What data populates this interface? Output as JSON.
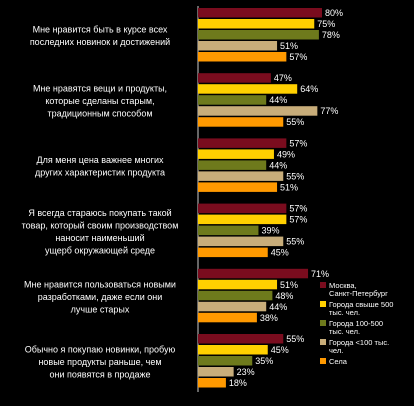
{
  "chart_data": {
    "type": "bar",
    "orientation": "horizontal",
    "xlim": [
      0,
      100
    ],
    "grid": false,
    "legend_position": "bottom-right",
    "categories": [
      [
        "Мне нравится быть в курсе всех",
        "последних новинок и достижений"
      ],
      [
        "Мне нравятся вещи и продукты,",
        "которые сделаны старым,",
        "традиционным способом"
      ],
      [
        "Для меня цена важнее многих",
        "других характеристик продукта"
      ],
      [
        "Я всегда стараюсь покупать такой",
        "товар, который своим производством",
        "наносит наименьший",
        "ущерб окружающей среде"
      ],
      [
        "Мне нравится пользоваться новыми",
        "разработками, даже если они",
        "лучше старых"
      ],
      [
        "Обычно я покупаю новинки, пробую",
        "новые продукты раньше, чем",
        "они появятся в продаже"
      ]
    ],
    "series": [
      {
        "name": "Москва, Санкт-Петербург",
        "color": "#7a0c1e",
        "values": [
          80,
          47,
          57,
          57,
          71,
          55
        ]
      },
      {
        "name": "Города свыше 500 тыс. чел.",
        "color": "#ffd000",
        "values": [
          75,
          64,
          49,
          57,
          51,
          45
        ]
      },
      {
        "name": "Города 100-500 тыс. чел.",
        "color": "#6e7a1c",
        "values": [
          78,
          44,
          44,
          39,
          48,
          35
        ]
      },
      {
        "name": "Города <100 тыс. чел.",
        "color": "#c8ad7a",
        "values": [
          51,
          77,
          55,
          55,
          44,
          23
        ]
      },
      {
        "name": "Села",
        "color": "#ff9900",
        "values": [
          57,
          55,
          51,
          45,
          38,
          18
        ]
      }
    ]
  }
}
